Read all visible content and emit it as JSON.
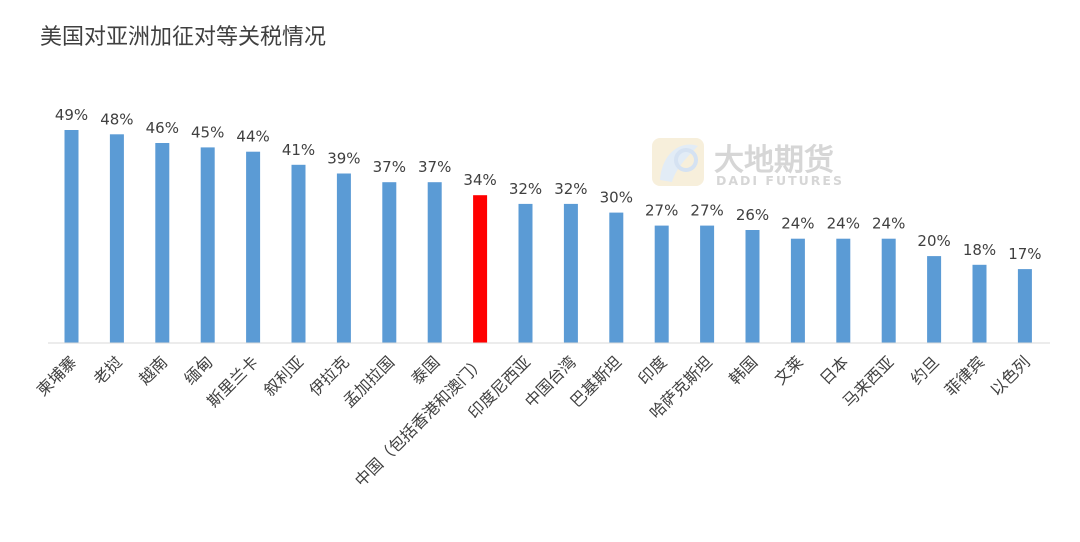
{
  "chart_data": {
    "type": "bar",
    "title": "美国对亚洲加征对等关税情况",
    "xlabel": "",
    "ylabel": "",
    "categories": [
      "柬埔寨",
      "老挝",
      "越南",
      "缅甸",
      "斯里兰卡",
      "叙利亚",
      "伊拉克",
      "孟加拉国",
      "泰国",
      "中国（包括香港和澳门）",
      "印度尼西亚",
      "中国台湾",
      "巴基斯坦",
      "印度",
      "哈萨克斯坦",
      "韩国",
      "文莱",
      "日本",
      "马来西亚",
      "约旦",
      "菲律宾",
      "以色列"
    ],
    "values": [
      49,
      48,
      46,
      45,
      44,
      41,
      39,
      37,
      37,
      34,
      32,
      32,
      30,
      27,
      27,
      26,
      24,
      24,
      24,
      20,
      18,
      17
    ],
    "data_labels": [
      "49%",
      "48%",
      "46%",
      "45%",
      "44%",
      "41%",
      "39%",
      "37%",
      "37%",
      "34%",
      "32%",
      "32%",
      "30%",
      "27%",
      "27%",
      "26%",
      "24%",
      "24%",
      "24%",
      "20%",
      "18%",
      "17%"
    ],
    "ylim": [
      0,
      49
    ],
    "highlight_index": 9,
    "colors": {
      "bar": "#5b9bd5",
      "highlight": "#ff0000",
      "axis": "#d9d9d9"
    },
    "grid": false,
    "legend": "none"
  },
  "watermark": {
    "name_cn": "大地期货",
    "name_en": "DADI FUTURES",
    "logo": "dadi-logo-icon"
  }
}
